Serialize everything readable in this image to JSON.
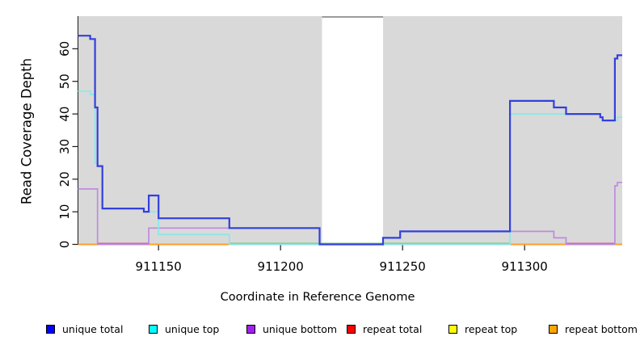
{
  "chart_data": {
    "type": "line",
    "subtype": "step-coverage-plot",
    "title": "",
    "xlabel": "Coordinate in Reference Genome",
    "ylabel": "Read Coverage Depth",
    "xlim": [
      911117,
      911340
    ],
    "ylim": [
      0,
      70
    ],
    "x_ticks": [
      911150,
      911200,
      911250,
      911300
    ],
    "y_ticks": [
      0,
      10,
      20,
      30,
      40,
      50,
      60
    ],
    "grid": "off",
    "legend_position": "bottom",
    "plot_background": "#d9d9d9",
    "axis_color": "#1a1a1a",
    "masked_region": {
      "from": 911217,
      "to": 911242,
      "fill": "#ffffff",
      "top_border_color": "#808080"
    },
    "series": [
      {
        "name": "unique total",
        "legend_color": "#0000ff",
        "line_color": "#3240dd",
        "width": 2.2,
        "points": [
          [
            911117,
            64
          ],
          [
            911122,
            63
          ],
          [
            911124,
            42
          ],
          [
            911125,
            24
          ],
          [
            911127,
            11
          ],
          [
            911144,
            10
          ],
          [
            911146,
            15
          ],
          [
            911150,
            8
          ],
          [
            911179,
            5
          ],
          [
            911216,
            0
          ],
          [
            911242,
            2
          ],
          [
            911249,
            4
          ],
          [
            911294,
            44
          ],
          [
            911312,
            42
          ],
          [
            911317,
            40
          ],
          [
            911331,
            39
          ],
          [
            911332,
            38
          ],
          [
            911337,
            57
          ],
          [
            911338,
            58
          ],
          [
            911340,
            58
          ]
        ]
      },
      {
        "name": "unique top",
        "legend_color": "#00ffff",
        "line_color": "#8be8e8",
        "width": 1.7,
        "points": [
          [
            911117,
            47
          ],
          [
            911122,
            46
          ],
          [
            911124,
            25
          ],
          [
            911125,
            24
          ],
          [
            911127,
            11
          ],
          [
            911144,
            10
          ],
          [
            911150,
            3
          ],
          [
            911179,
            0
          ],
          [
            911294,
            40
          ],
          [
            911331,
            39
          ],
          [
            911332,
            38
          ],
          [
            911338,
            39
          ],
          [
            911340,
            39
          ]
        ]
      },
      {
        "name": "unique bottom",
        "legend_color": "#a020f0",
        "line_color": "#c08ade",
        "width": 1.7,
        "points": [
          [
            911117,
            17
          ],
          [
            911125,
            0
          ],
          [
            911146,
            5
          ],
          [
            911216,
            0
          ],
          [
            911242,
            2
          ],
          [
            911249,
            4
          ],
          [
            911312,
            2
          ],
          [
            911317,
            0
          ],
          [
            911337,
            18
          ],
          [
            911338,
            19
          ],
          [
            911340,
            19
          ]
        ]
      },
      {
        "name": "repeat total",
        "legend_color": "#ff0000",
        "line_color": "#ff0000",
        "width": 1.0,
        "points": [
          [
            911117,
            0
          ],
          [
            911340,
            0
          ]
        ]
      },
      {
        "name": "repeat top",
        "legend_color": "#ffff00",
        "line_color": "#ffff00",
        "width": 1.0,
        "points": [
          [
            911117,
            0
          ],
          [
            911340,
            0
          ]
        ]
      },
      {
        "name": "repeat bottom",
        "legend_color": "#ffa500",
        "line_color": "#ff9f2a",
        "width": 2.0,
        "points": [
          [
            911117,
            0
          ],
          [
            911340,
            0
          ]
        ]
      }
    ],
    "baseline_blends": [
      {
        "from": 911125,
        "to": 911146,
        "color": "#cf5f9f"
      },
      {
        "from": 911179,
        "to": 911294,
        "color": "#7cc87c"
      },
      {
        "from": 911317,
        "to": 911337,
        "color": "#cf5f9f"
      }
    ]
  }
}
